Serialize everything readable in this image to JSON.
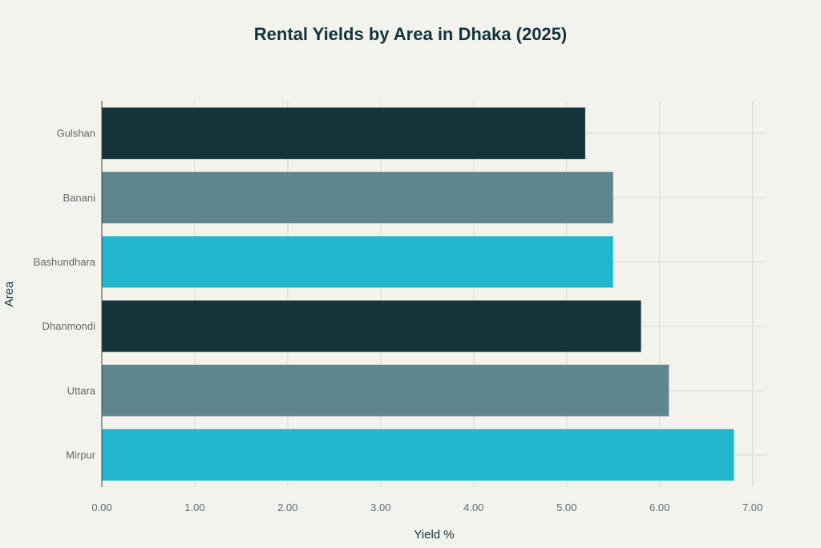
{
  "chart_data": {
    "type": "bar",
    "orientation": "horizontal",
    "title": "Rental Yields by Area in Dhaka (2025)",
    "xlabel": "Yield %",
    "ylabel": "Area",
    "categories": [
      "Gulshan",
      "Banani",
      "Bashundhara",
      "Dhanmondi",
      "Uttara",
      "Mirpur"
    ],
    "values": [
      5.2,
      5.5,
      5.5,
      5.8,
      6.1,
      6.8
    ],
    "colors": [
      "#13343b",
      "#5f868d",
      "#21b8cd",
      "#13343b",
      "#5f868d",
      "#21b8cd"
    ],
    "xticks": [
      "0.00",
      "1.00",
      "2.00",
      "3.00",
      "4.00",
      "5.00",
      "6.00",
      "7.00"
    ],
    "xlim": [
      0,
      7.15
    ],
    "grid": true
  }
}
